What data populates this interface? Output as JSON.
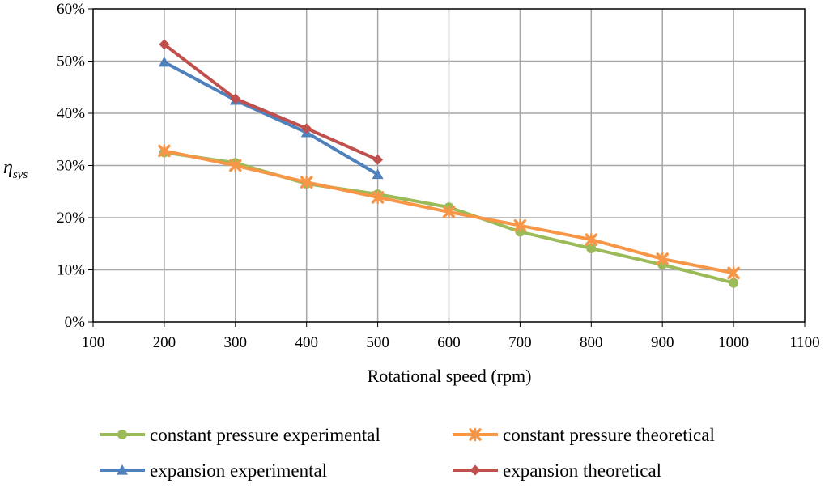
{
  "chart_data": {
    "type": "line",
    "title": "",
    "xlabel": "Rotational speed (rpm)",
    "ylabel_main": "η",
    "ylabel_sub": "sys",
    "xlim": [
      100,
      1100
    ],
    "ylim": [
      0,
      60
    ],
    "x_ticks": [
      100,
      200,
      300,
      400,
      500,
      600,
      700,
      800,
      900,
      1000,
      1100
    ],
    "x_tick_labels": [
      "100",
      "200",
      "300",
      "400",
      "500",
      "600",
      "700",
      "800",
      "900",
      "1000",
      "1100"
    ],
    "y_ticks": [
      0,
      10,
      20,
      30,
      40,
      50,
      60
    ],
    "y_tick_labels": [
      "0%",
      "10%",
      "20%",
      "30%",
      "40%",
      "50%",
      "60%"
    ],
    "grid": true,
    "legend_position": "bottom",
    "series": [
      {
        "name": "constant pressure experimental",
        "color": "#9BBB59",
        "marker": "circle",
        "x": [
          200,
          300,
          400,
          500,
          600,
          700,
          800,
          900,
          1000
        ],
        "values": [
          32.5,
          30.5,
          26.5,
          24.5,
          22,
          17.3,
          14.1,
          11,
          7.5
        ]
      },
      {
        "name": "constant pressure theoretical",
        "color": "#F79646",
        "marker": "star",
        "x": [
          200,
          300,
          400,
          500,
          600,
          700,
          800,
          900,
          1000
        ],
        "values": [
          32.8,
          30,
          26.8,
          23.9,
          21.1,
          18.5,
          15.8,
          12.1,
          9.4
        ]
      },
      {
        "name": "expansion experimental",
        "color": "#4F81BD",
        "marker": "triangle",
        "x": [
          200,
          300,
          400,
          500
        ],
        "values": [
          49.8,
          42.5,
          36.3,
          28.3
        ]
      },
      {
        "name": "expansion theoretical",
        "color": "#C0504D",
        "marker": "diamond",
        "x": [
          200,
          300,
          400,
          500
        ],
        "values": [
          53.2,
          42.8,
          37.1,
          31.1
        ]
      }
    ]
  }
}
